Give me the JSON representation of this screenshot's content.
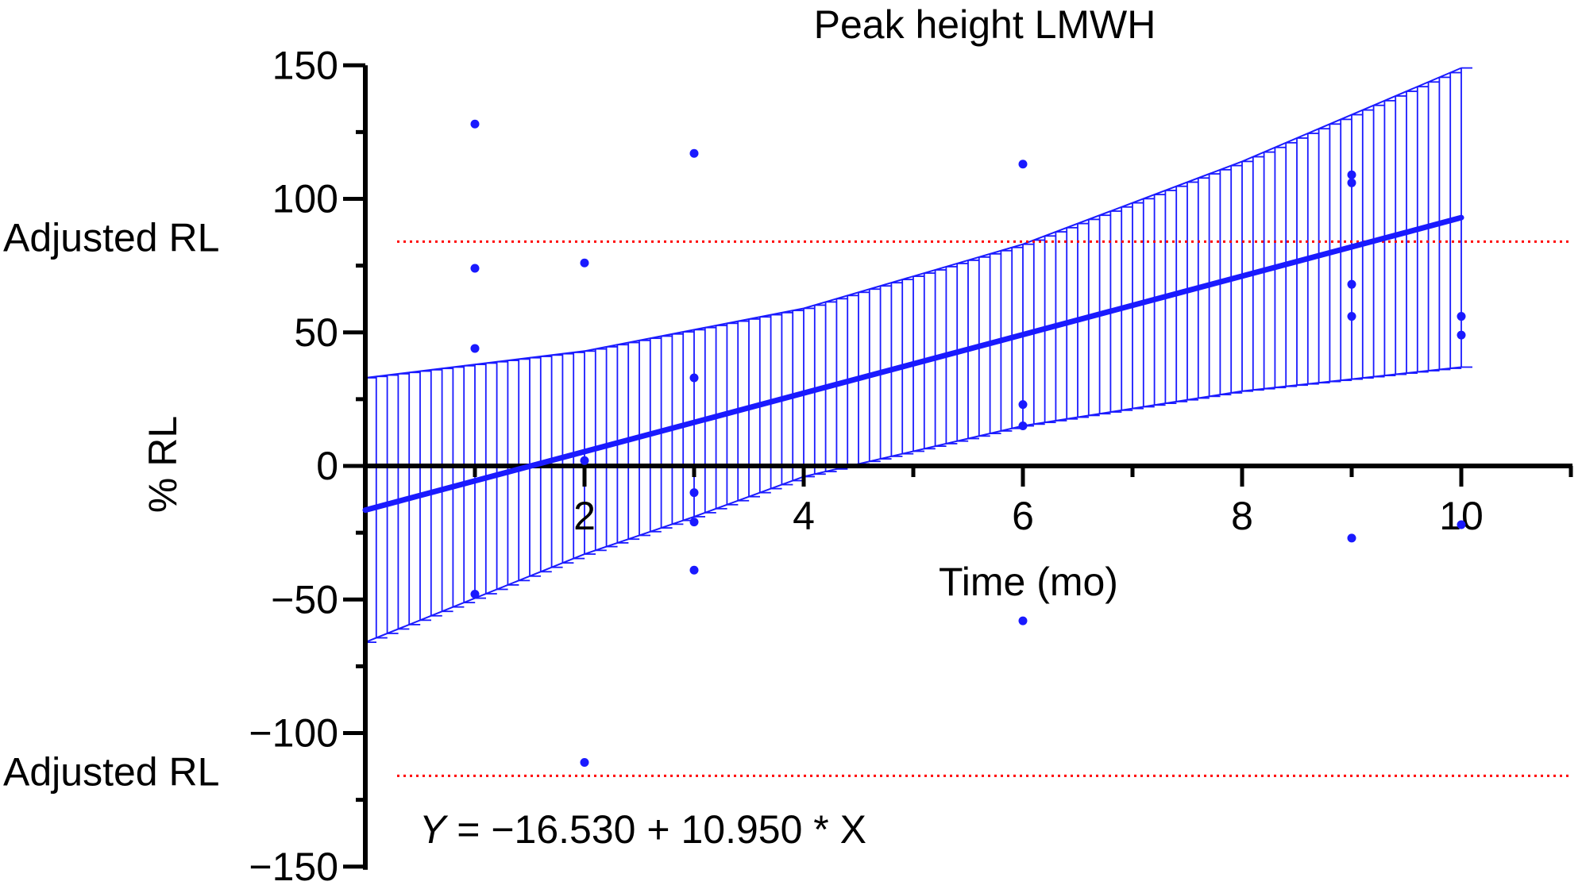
{
  "chart_data": {
    "type": "scatter",
    "title": "Peak height LMWH",
    "xlabel": "Time (mo)",
    "ylabel": "% RL",
    "xlim": [
      0,
      11
    ],
    "ylim": [
      -150,
      150
    ],
    "x_ticks": [
      "2",
      "4",
      "6",
      "8",
      "10"
    ],
    "y_ticks": [
      "150",
      "100",
      "50",
      "0",
      "−50",
      "−100",
      "−150"
    ],
    "points": [
      {
        "x": 1,
        "y": 128
      },
      {
        "x": 1,
        "y": 74
      },
      {
        "x": 1,
        "y": 44
      },
      {
        "x": 1,
        "y": -48
      },
      {
        "x": 2,
        "y": 76
      },
      {
        "x": 2,
        "y": 2
      },
      {
        "x": 2,
        "y": -111
      },
      {
        "x": 3,
        "y": 117
      },
      {
        "x": 3,
        "y": 33
      },
      {
        "x": 3,
        "y": -10
      },
      {
        "x": 3,
        "y": -21
      },
      {
        "x": 3,
        "y": -39
      },
      {
        "x": 6,
        "y": 113
      },
      {
        "x": 6,
        "y": 23
      },
      {
        "x": 6,
        "y": 15
      },
      {
        "x": 6,
        "y": -58
      },
      {
        "x": 9,
        "y": 109
      },
      {
        "x": 9,
        "y": 106
      },
      {
        "x": 9,
        "y": 68
      },
      {
        "x": 9,
        "y": 56
      },
      {
        "x": 9,
        "y": -27
      },
      {
        "x": 10,
        "y": 56
      },
      {
        "x": 10,
        "y": 49
      },
      {
        "x": 10,
        "y": -22
      }
    ],
    "regression": {
      "intercept": -16.53,
      "slope": 10.95,
      "x_range": [
        0,
        10
      ],
      "equation_label_var": "Y",
      "equation_label_rest": " = −16.530 + 10.950 * X"
    },
    "confidence_band": {
      "upper": [
        {
          "x": 0,
          "y": 33
        },
        {
          "x": 2,
          "y": 43
        },
        {
          "x": 3,
          "y": 51
        },
        {
          "x": 4,
          "y": 59
        },
        {
          "x": 6,
          "y": 83
        },
        {
          "x": 8,
          "y": 114
        },
        {
          "x": 10,
          "y": 149
        }
      ],
      "lower": [
        {
          "x": 0,
          "y": -66
        },
        {
          "x": 2,
          "y": -33
        },
        {
          "x": 3,
          "y": -19
        },
        {
          "x": 4,
          "y": -4
        },
        {
          "x": 6,
          "y": 15
        },
        {
          "x": 8,
          "y": 28
        },
        {
          "x": 10,
          "y": 37
        }
      ]
    },
    "reference_lines": [
      {
        "label": "Adjusted RL",
        "y": 84
      },
      {
        "label": "Adjusted RL",
        "y": -116
      }
    ],
    "colors": {
      "series": "#1a1aff",
      "reference": "#ff0000",
      "axis": "#000000"
    },
    "grid": false
  }
}
